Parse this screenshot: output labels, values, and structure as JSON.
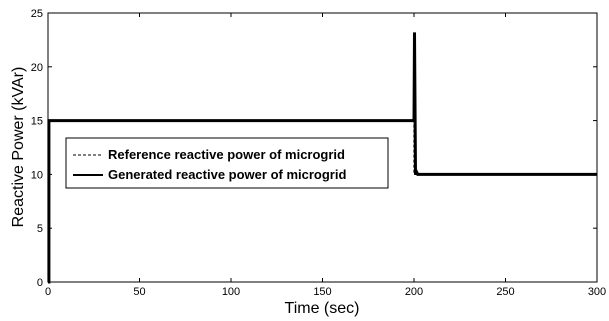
{
  "chart_data": {
    "type": "line",
    "title": "",
    "xlabel": "Time (sec)",
    "ylabel": "Reactive Power (kVAr)",
    "xlim": [
      0,
      300
    ],
    "ylim": [
      0,
      25
    ],
    "x_ticks": [
      0,
      50,
      100,
      150,
      200,
      250,
      300
    ],
    "y_ticks": [
      0,
      5,
      10,
      15,
      20,
      25
    ],
    "grid": false,
    "legend_position": "left-center",
    "series": [
      {
        "name": "Reference reactive power of microgrid",
        "style": "dashed",
        "color": "#000000",
        "x": [
          0,
          200,
          200,
          300
        ],
        "y": [
          15,
          15,
          10,
          10
        ]
      },
      {
        "name": "Generated reactive power of microgrid",
        "style": "solid",
        "color": "#000000",
        "x": [
          0,
          0.5,
          0.5,
          200,
          200.3,
          200.8,
          201.2,
          202,
          300
        ],
        "y": [
          0,
          0,
          15,
          15,
          23.2,
          10,
          10.3,
          10,
          10
        ]
      }
    ]
  }
}
